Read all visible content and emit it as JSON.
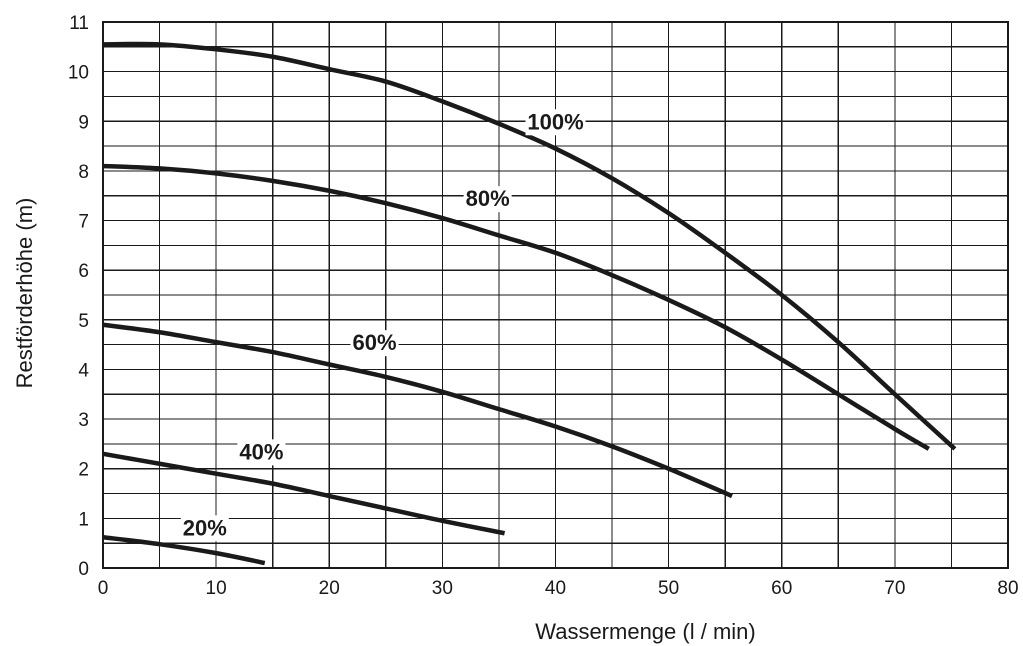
{
  "chart_data": {
    "type": "line",
    "xlabel": "Wassermenge (l / min)",
    "ylabel": "Restförderhöhe  (m)",
    "xlim": [
      0,
      80
    ],
    "ylim": [
      0,
      11
    ],
    "x_ticks": [
      0,
      10,
      20,
      30,
      40,
      50,
      60,
      70,
      80
    ],
    "y_ticks": [
      0,
      1,
      2,
      3,
      4,
      5,
      6,
      7,
      8,
      9,
      10,
      11
    ],
    "grid": true,
    "grid_step_x": 5,
    "grid_step_y": 0.5,
    "line_color": "#1a1a1a",
    "series": [
      {
        "name": "100%",
        "x": [
          0,
          5,
          10,
          15,
          20,
          25,
          30,
          35,
          40,
          45,
          50,
          55,
          60,
          65,
          70,
          75.3
        ],
        "y": [
          10.55,
          10.55,
          10.45,
          10.3,
          10.05,
          9.8,
          9.4,
          8.95,
          8.45,
          7.85,
          7.15,
          6.35,
          5.5,
          4.55,
          3.5,
          2.4
        ],
        "label_at": [
          40,
          9
        ]
      },
      {
        "name": "80%",
        "x": [
          0,
          5,
          10,
          15,
          20,
          25,
          30,
          35,
          40,
          45,
          50,
          55,
          60,
          65,
          70,
          73
        ],
        "y": [
          8.1,
          8.05,
          7.95,
          7.8,
          7.6,
          7.35,
          7.05,
          6.7,
          6.35,
          5.9,
          5.4,
          4.85,
          4.2,
          3.5,
          2.8,
          2.4
        ],
        "label_at": [
          34,
          7.45
        ]
      },
      {
        "name": "60%",
        "x": [
          0,
          5,
          10,
          15,
          20,
          25,
          30,
          35,
          40,
          45,
          50,
          55.6
        ],
        "y": [
          4.9,
          4.75,
          4.55,
          4.35,
          4.1,
          3.85,
          3.55,
          3.2,
          2.85,
          2.45,
          2.0,
          1.45
        ],
        "label_at": [
          24,
          4.55
        ]
      },
      {
        "name": "40%",
        "x": [
          0,
          5,
          10,
          15,
          20,
          25,
          30,
          35.5
        ],
        "y": [
          2.3,
          2.1,
          1.9,
          1.7,
          1.45,
          1.2,
          0.95,
          0.7
        ],
        "label_at": [
          14,
          2.35
        ]
      },
      {
        "name": "20%",
        "x": [
          0,
          5,
          10,
          14.3
        ],
        "y": [
          0.62,
          0.48,
          0.3,
          0.1
        ],
        "label_at": [
          9,
          0.82
        ]
      }
    ]
  }
}
